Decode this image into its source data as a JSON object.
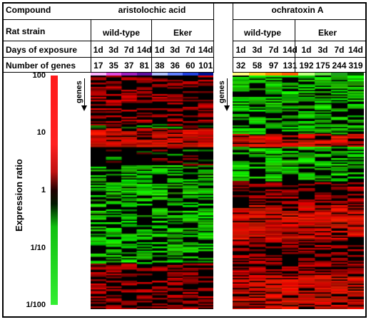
{
  "header": {
    "row_labels": {
      "compound": "Compound",
      "strain": "Rat strain",
      "days": "Days of exposure",
      "genes": "Number of genes"
    },
    "compounds": [
      "aristolochic acid",
      "ochratoxin A"
    ],
    "strains": [
      "wild-type",
      "Eker",
      "wild-type",
      "Eker"
    ],
    "days": [
      "1d",
      "3d",
      "7d",
      "14d",
      "1d",
      "3d",
      "7d",
      "14d",
      "1d",
      "3d",
      "7d",
      "14d",
      "1d",
      "3d",
      "7d",
      "14d"
    ],
    "gene_counts": [
      "17",
      "35",
      "37",
      "81",
      "38",
      "36",
      "60",
      "101",
      "32",
      "58",
      "97",
      "131",
      "192",
      "175",
      "244",
      "319"
    ],
    "strip_colors": [
      "#ffb3ff",
      "#e04ce0",
      "#a020c0",
      "#6010a0",
      "#b0c0ff",
      "#6080ff",
      "#2040e0",
      "#001090",
      "#ffff80",
      "#ffd020",
      "#ff9000",
      "#ff6000",
      "#c0ff80",
      "#60e040",
      "#20a020",
      "#005000"
    ]
  },
  "scale": {
    "label": "Expression ratio",
    "ticks": [
      "100",
      "10",
      "1",
      "1/10",
      "1/100"
    ],
    "colors": {
      "up": "#ff1a1a",
      "mid": "#000000",
      "down": "#33ee33"
    }
  },
  "axis_label": "genes"
}
